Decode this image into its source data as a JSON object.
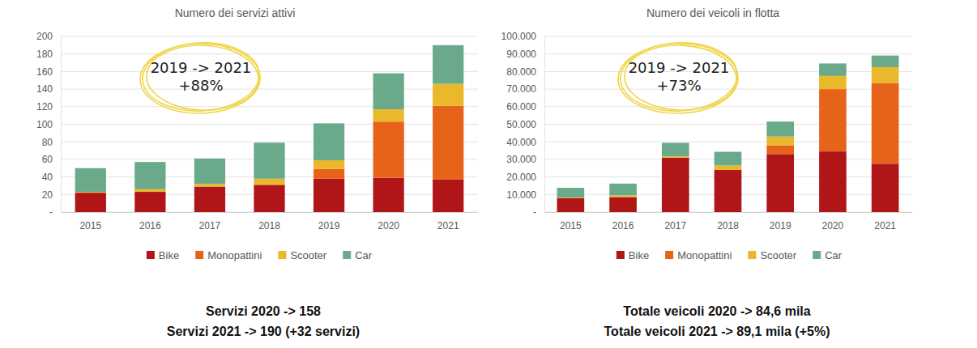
{
  "chart_data": [
    {
      "type": "bar",
      "stacked": true,
      "grid": true,
      "legend": "bottom",
      "title": "Numero dei servizi attivi",
      "categories": [
        "2015",
        "2016",
        "2017",
        "2018",
        "2019",
        "2020",
        "2021"
      ],
      "series": [
        {
          "name": "Bike",
          "color": "#b01518",
          "values": [
            22,
            23,
            29,
            31,
            38,
            39,
            37
          ]
        },
        {
          "name": "Monopattini",
          "color": "#e8631a",
          "values": [
            0,
            0,
            0,
            0,
            11,
            64,
            84
          ]
        },
        {
          "name": "Scooter",
          "color": "#e9b92b",
          "values": [
            1,
            3,
            3,
            7,
            10,
            14,
            25
          ]
        },
        {
          "name": "Car",
          "color": "#6aaa8b",
          "values": [
            27,
            31,
            29,
            41,
            42,
            41,
            44
          ]
        }
      ],
      "ylim": [
        0,
        200
      ],
      "yticks": [
        {
          "value": 0,
          "label": "-"
        },
        20,
        40,
        60,
        80,
        100,
        120,
        140,
        160,
        180,
        200
      ],
      "annotation": [
        "2019 -> 2021",
        "+88%"
      ],
      "footer": [
        "Servizi 2020 -> 158",
        "Servizi 2021 -> 190 (+32 servizi)"
      ]
    },
    {
      "type": "bar",
      "stacked": true,
      "grid": true,
      "legend": "bottom",
      "title": "Numero dei veicoli in flotta",
      "categories": [
        "2015",
        "2016",
        "2017",
        "2018",
        "2019",
        "2020",
        "2021"
      ],
      "series": [
        {
          "name": "Bike",
          "color": "#b01518",
          "values": [
            8000,
            8500,
            31000,
            24000,
            33000,
            34500,
            27500
          ]
        },
        {
          "name": "Monopattini",
          "color": "#e8631a",
          "values": [
            0,
            0,
            0,
            0,
            5000,
            35500,
            46000
          ]
        },
        {
          "name": "Scooter",
          "color": "#e9b92b",
          "values": [
            300,
            1000,
            700,
            2500,
            5000,
            7500,
            9000
          ]
        },
        {
          "name": "Car",
          "color": "#6aaa8b",
          "values": [
            5500,
            6700,
            7700,
            7800,
            8500,
            7100,
            6600
          ]
        }
      ],
      "ylim": [
        0,
        100000
      ],
      "yticks": [
        {
          "value": 0,
          "label": "-"
        },
        {
          "value": 10000,
          "label": "10.000"
        },
        {
          "value": 20000,
          "label": "20.000"
        },
        {
          "value": 30000,
          "label": "30.000"
        },
        {
          "value": 40000,
          "label": "40.000"
        },
        {
          "value": 50000,
          "label": "50.000"
        },
        {
          "value": 60000,
          "label": "60.000"
        },
        {
          "value": 70000,
          "label": "70.000"
        },
        {
          "value": 80000,
          "label": "80.000"
        },
        {
          "value": 90000,
          "label": "90.000"
        },
        {
          "value": 100000,
          "label": "100.000"
        }
      ],
      "annotation": [
        "2019 -> 2021",
        "+73%"
      ],
      "footer": [
        "Totale veicoli 2020 -> 84,6 mila",
        "Totale veicoli 2021 -> 89,1 mila (+5%)"
      ]
    }
  ]
}
